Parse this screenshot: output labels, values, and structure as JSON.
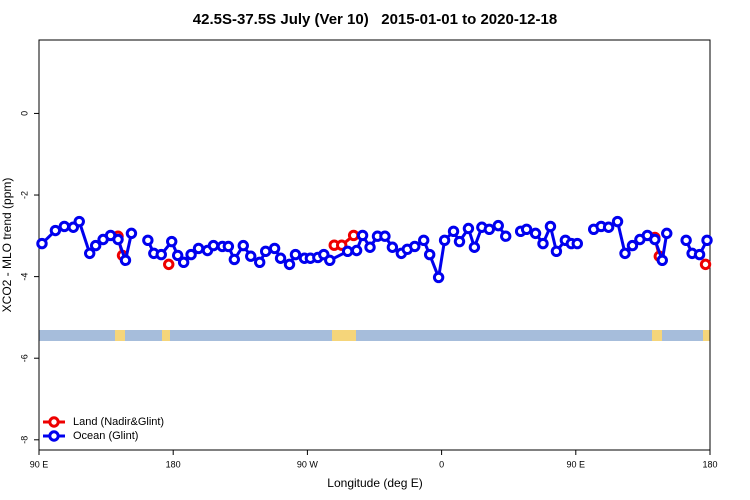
{
  "chart_data": {
    "type": "line",
    "title": "42.5S-37.5S July (Ver 10)   2015-01-01 to 2020-12-18",
    "x_label": "Longitude (deg E)",
    "y_label": "XCO2 - MLO trend (ppm)",
    "xlim": [
      90,
      540
    ],
    "ylim": [
      -8.25,
      1.8
    ],
    "xticks": [
      {
        "value": 90,
        "label": "90 E"
      },
      180,
      {
        "value": 270,
        "label": "90 W"
      },
      {
        "value": 360,
        "label": "0"
      },
      {
        "value": 450,
        "label": "90 E"
      },
      {
        "value": 540,
        "label": "180"
      }
    ],
    "yticks": [
      0,
      -2,
      -4,
      -6,
      -8
    ],
    "legend": "bottomleft",
    "series": [
      {
        "name": "Ocean (Glint)",
        "color": "#0000ee",
        "x": [
          92,
          101,
          107,
          113,
          117,
          124,
          128,
          133,
          138,
          143,
          148,
          152,
          155,
          163,
          167,
          172,
          179,
          183,
          187,
          192,
          197,
          203,
          207,
          213,
          217,
          221,
          227,
          232,
          238,
          242,
          248,
          252,
          258,
          262,
          268,
          272,
          277,
          281,
          285,
          297,
          303,
          307,
          312,
          317,
          322,
          327,
          333,
          337,
          342,
          348,
          352,
          358,
          362,
          368,
          372,
          378,
          382,
          387,
          392,
          398,
          403,
          408,
          413,
          417,
          423,
          428,
          433,
          437,
          443,
          447,
          451,
          455,
          462,
          467,
          472,
          478,
          483,
          488,
          493,
          498,
          503,
          508,
          511,
          515,
          524,
          528,
          533,
          538
        ],
        "values": [
          -3.19,
          -2.87,
          -2.77,
          -2.79,
          -2.65,
          -3.43,
          -3.24,
          -3.09,
          -2.99,
          -3.09,
          -3.6,
          -2.94,
          null,
          -3.11,
          -3.43,
          -3.46,
          -3.14,
          -3.48,
          -3.65,
          -3.46,
          -3.31,
          -3.36,
          -3.24,
          -3.26,
          -3.26,
          -3.58,
          -3.24,
          -3.5,
          -3.65,
          -3.38,
          -3.31,
          -3.55,
          -3.7,
          -3.46,
          -3.55,
          -3.55,
          -3.53,
          -3.46,
          -3.6,
          -3.38,
          -3.36,
          -2.99,
          -3.28,
          -3.01,
          -3.01,
          -3.28,
          -3.43,
          -3.33,
          -3.26,
          -3.11,
          -3.46,
          -4.02,
          -3.11,
          -2.89,
          -3.14,
          -2.82,
          -3.28,
          -2.79,
          -2.84,
          -2.75,
          -3.01,
          null,
          -2.89,
          -2.84,
          -2.94,
          -3.19,
          -2.77,
          -3.38,
          -3.11,
          -3.19,
          -3.19,
          null,
          -2.84,
          -2.77,
          -2.79,
          -2.65,
          -3.43,
          -3.24,
          -3.09,
          -2.99,
          -3.09,
          -3.6,
          -2.94,
          null,
          -3.11,
          -3.43,
          -3.46,
          -3.11
        ]
      },
      {
        "name": "Land (Nadir&Glint)",
        "color": "#ee0000",
        "x": [
          143,
          146,
          160,
          177,
          200,
          288,
          293,
          301,
          400,
          503,
          506,
          520,
          537
        ],
        "values": [
          -3.01,
          -3.48,
          null,
          -3.7,
          null,
          -3.23,
          -3.23,
          -2.99,
          null,
          -3.04,
          -3.5,
          null,
          -3.7
        ]
      }
    ]
  }
}
